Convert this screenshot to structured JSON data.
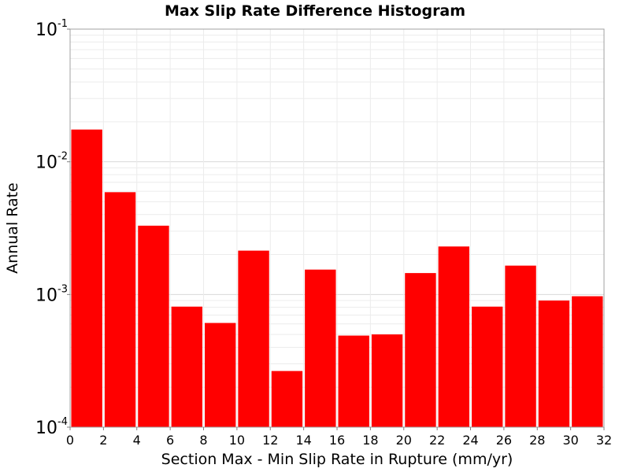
{
  "chart_data": {
    "type": "bar",
    "title": "Max Slip Rate Difference Histogram",
    "xlabel": "Section Max - Min Slip Rate in Rupture (mm/yr)",
    "ylabel": "Annual Rate",
    "xlim": [
      0,
      32
    ],
    "ylim": [
      0.0001,
      0.1
    ],
    "yscale": "log",
    "grid": true,
    "bar_color": "#ff0000",
    "bin_width": 2,
    "bins": [
      {
        "x0": 0,
        "x1": 2,
        "value": 0.0175
      },
      {
        "x0": 2,
        "x1": 4,
        "value": 0.0059
      },
      {
        "x0": 4,
        "x1": 6,
        "value": 0.0033
      },
      {
        "x0": 6,
        "x1": 8,
        "value": 0.00081
      },
      {
        "x0": 8,
        "x1": 10,
        "value": 0.00061
      },
      {
        "x0": 10,
        "x1": 12,
        "value": 0.00214
      },
      {
        "x0": 12,
        "x1": 14,
        "value": 0.000265
      },
      {
        "x0": 14,
        "x1": 16,
        "value": 0.00154
      },
      {
        "x0": 16,
        "x1": 18,
        "value": 0.00049
      },
      {
        "x0": 18,
        "x1": 20,
        "value": 0.0005
      },
      {
        "x0": 20,
        "x1": 22,
        "value": 0.00145
      },
      {
        "x0": 22,
        "x1": 24,
        "value": 0.0023
      },
      {
        "x0": 24,
        "x1": 26,
        "value": 0.00081
      },
      {
        "x0": 26,
        "x1": 28,
        "value": 0.00165
      },
      {
        "x0": 28,
        "x1": 30,
        "value": 0.0009
      },
      {
        "x0": 30,
        "x1": 32,
        "value": 0.00097
      }
    ],
    "xticks": [
      "0",
      "2",
      "4",
      "6",
      "8",
      "10",
      "12",
      "14",
      "16",
      "18",
      "20",
      "22",
      "24",
      "26",
      "28",
      "30",
      "32"
    ],
    "yticks": [
      {
        "base": "10",
        "exp": "-1",
        "value": 0.1
      },
      {
        "base": "10",
        "exp": "-2",
        "value": 0.01
      },
      {
        "base": "10",
        "exp": "-3",
        "value": 0.001
      },
      {
        "base": "10",
        "exp": "-4",
        "value": 0.0001
      }
    ]
  }
}
